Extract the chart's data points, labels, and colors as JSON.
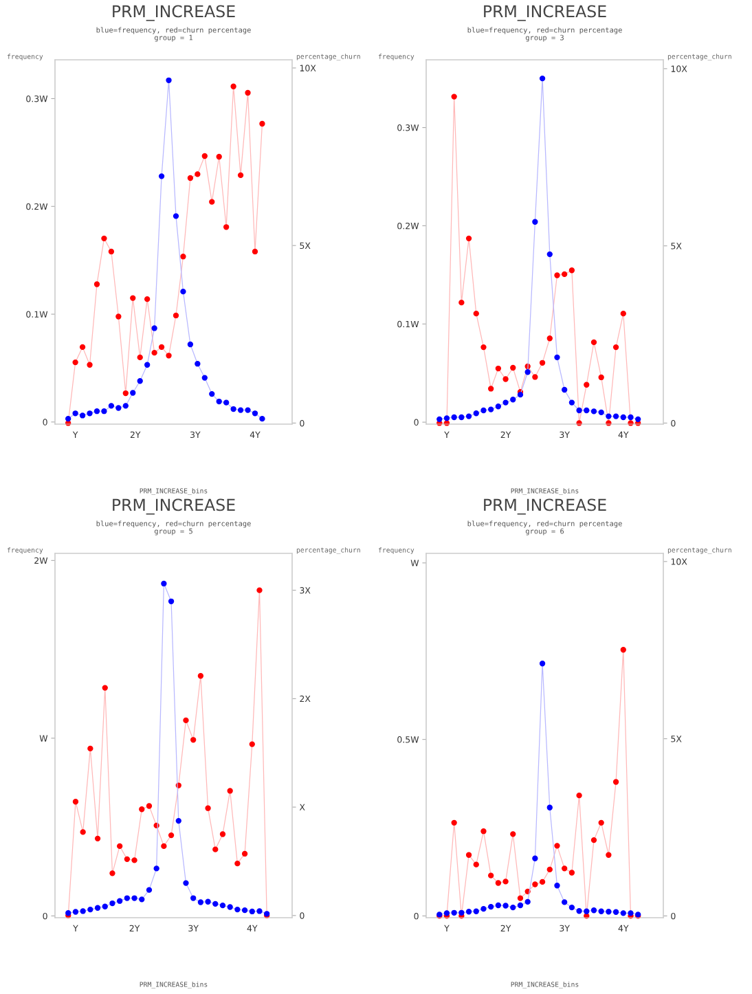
{
  "chart_data": [
    {
      "type": "line",
      "title": "PRM_INCREASE",
      "subtitle": "blue=frequency, red=churn percentage\ngroup = 1",
      "xlabel": "PRM_INCREASE_bins",
      "ylabel": "frequency",
      "y2label": "percentage_churn",
      "marker": "circle",
      "grid": false,
      "x": [
        0.88,
        1.0,
        1.12,
        1.24,
        1.36,
        1.48,
        1.6,
        1.72,
        1.84,
        1.96,
        2.08,
        2.2,
        2.32,
        2.44,
        2.56,
        2.68,
        2.8,
        2.92,
        3.04,
        3.16,
        3.28,
        3.4,
        3.52,
        3.64,
        3.76,
        3.88,
        4.0,
        4.12
      ],
      "xlim": [
        0.66,
        4.62
      ],
      "xticks": [
        {
          "value": 1,
          "label": "Y"
        },
        {
          "value": 2,
          "label": "2Y"
        },
        {
          "value": 3,
          "label": "3Y"
        },
        {
          "value": 4,
          "label": "4Y"
        }
      ],
      "ylim": [
        -0.002,
        0.336
      ],
      "yticks": [
        0,
        {
          "value": 0.1,
          "label": "0.1W"
        },
        {
          "value": 0.2,
          "label": "0.2W"
        },
        {
          "value": 0.3,
          "label": "0.3W"
        }
      ],
      "y2lim": [
        -0.03,
        10.23
      ],
      "y2ticks": [
        0,
        {
          "value": 5,
          "label": "5X"
        },
        {
          "value": 10,
          "label": "10X"
        }
      ],
      "series": [
        {
          "color": "#0000ff",
          "values": [
            0.003,
            0.008,
            0.006,
            0.008,
            0.01,
            0.01,
            0.015,
            0.013,
            0.015,
            0.027,
            0.038,
            0.053,
            0.087,
            0.228,
            0.317,
            0.191,
            0.121,
            0.072,
            0.054,
            0.041,
            0.026,
            0.019,
            0.018,
            0.012,
            0.011,
            0.011,
            0.008,
            0.003
          ]
        },
        {
          "color": "#ff0000",
          "axis": "y2",
          "values": [
            0.0,
            1.71,
            2.14,
            1.64,
            3.91,
            5.2,
            4.83,
            3.0,
            0.84,
            3.52,
            1.85,
            3.49,
            1.98,
            2.14,
            1.9,
            3.03,
            4.69,
            6.9,
            7.01,
            7.52,
            6.23,
            7.5,
            5.52,
            9.48,
            6.98,
            9.3,
            4.83,
            8.43
          ]
        }
      ]
    },
    {
      "type": "line",
      "title": "PRM_INCREASE",
      "subtitle": "blue=frequency, red=churn percentage\ngroup = 3",
      "xlabel": "PRM_INCREASE_bins",
      "ylabel": "frequency",
      "y2label": "percentage_churn",
      "marker": "circle",
      "grid": false,
      "x": [
        0.875,
        1.0,
        1.125,
        1.25,
        1.375,
        1.5,
        1.625,
        1.75,
        1.875,
        2.0,
        2.125,
        2.25,
        2.375,
        2.5,
        2.625,
        2.75,
        2.875,
        3.0,
        3.125,
        3.25,
        3.375,
        3.5,
        3.625,
        3.75,
        3.875,
        4.0,
        4.125,
        4.25
      ],
      "xlim": [
        0.65,
        4.68
      ],
      "xticks": [
        {
          "value": 1,
          "label": "Y"
        },
        {
          "value": 2,
          "label": "2Y"
        },
        {
          "value": 3,
          "label": "3Y"
        },
        {
          "value": 4,
          "label": "4Y"
        }
      ],
      "ylim": [
        -0.002,
        0.369
      ],
      "yticks": [
        0,
        {
          "value": 0.1,
          "label": "0.1W"
        },
        {
          "value": 0.2,
          "label": "0.2W"
        },
        {
          "value": 0.3,
          "label": "0.3W"
        }
      ],
      "y2lim": [
        -0.03,
        10.25
      ],
      "y2ticks": [
        0,
        {
          "value": 5,
          "label": "5X"
        },
        {
          "value": 10,
          "label": "10X"
        }
      ],
      "series": [
        {
          "color": "#0000ff",
          "values": [
            0.003,
            0.004,
            0.005,
            0.005,
            0.006,
            0.009,
            0.012,
            0.013,
            0.016,
            0.02,
            0.023,
            0.028,
            0.051,
            0.204,
            0.35,
            0.171,
            0.066,
            0.033,
            0.02,
            0.012,
            0.012,
            0.011,
            0.01,
            0.006,
            0.006,
            0.005,
            0.005,
            0.003
          ]
        },
        {
          "color": "#ff0000",
          "axis": "y2",
          "values": [
            0.0,
            0.0,
            9.21,
            3.4,
            5.21,
            3.09,
            2.14,
            0.97,
            1.54,
            1.24,
            1.56,
            0.88,
            1.6,
            1.3,
            1.7,
            2.39,
            4.17,
            4.2,
            4.31,
            0.0,
            1.08,
            2.28,
            1.29,
            0.0,
            2.14,
            3.09,
            0.0,
            0.0
          ]
        }
      ]
    },
    {
      "type": "line",
      "title": "PRM_INCREASE",
      "subtitle": "blue=frequency, red=churn percentage\ngroup = 5",
      "xlabel": "PRM_INCREASE_bins",
      "ylabel": "frequency",
      "y2label": "percentage_churn",
      "marker": "circle",
      "grid": false,
      "x": [
        0.875,
        1.0,
        1.125,
        1.25,
        1.375,
        1.5,
        1.625,
        1.75,
        1.875,
        2.0,
        2.125,
        2.25,
        2.375,
        2.5,
        2.625,
        2.75,
        2.875,
        3.0,
        3.125,
        3.25,
        3.375,
        3.5,
        3.625,
        3.75,
        3.875,
        4.0,
        4.125,
        4.25
      ],
      "xlim": [
        0.65,
        4.68
      ],
      "xticks": [
        {
          "value": 1,
          "label": "Y"
        },
        {
          "value": 2,
          "label": "2Y"
        },
        {
          "value": 3,
          "label": "3Y"
        },
        {
          "value": 4,
          "label": "4Y"
        }
      ],
      "ylim": [
        -0.01,
        2.04
      ],
      "yticks": [
        0,
        {
          "value": 1,
          "label": "W"
        },
        {
          "value": 2,
          "label": "2W"
        }
      ],
      "y2lim": [
        -0.02,
        3.34
      ],
      "y2ticks": [
        0,
        {
          "value": 1,
          "label": "X"
        },
        {
          "value": 2,
          "label": "2X"
        },
        {
          "value": 3,
          "label": "3X"
        }
      ],
      "series": [
        {
          "color": "#0000ff",
          "values": [
            0.016,
            0.023,
            0.027,
            0.036,
            0.045,
            0.053,
            0.071,
            0.084,
            0.1,
            0.1,
            0.093,
            0.146,
            0.267,
            1.87,
            1.77,
            0.535,
            0.185,
            0.1,
            0.077,
            0.08,
            0.068,
            0.059,
            0.05,
            0.036,
            0.032,
            0.025,
            0.027,
            0.012
          ]
        },
        {
          "color": "#ff0000",
          "axis": "y2",
          "values": [
            0.0,
            1.05,
            0.77,
            1.54,
            0.71,
            2.1,
            0.39,
            0.64,
            0.52,
            0.51,
            0.98,
            1.01,
            0.83,
            0.64,
            0.74,
            1.2,
            1.8,
            1.62,
            2.21,
            0.99,
            0.61,
            0.75,
            1.15,
            0.48,
            0.57,
            1.58,
            3.0,
            0.0
          ]
        }
      ]
    },
    {
      "type": "line",
      "title": "PRM_INCREASE",
      "subtitle": "blue=frequency, red=churn percentage\ngroup = 6",
      "xlabel": "PRM_INCREASE_bins",
      "ylabel": "frequency",
      "y2label": "percentage_churn",
      "marker": "circle",
      "grid": false,
      "x": [
        0.875,
        1.0,
        1.125,
        1.25,
        1.375,
        1.5,
        1.625,
        1.75,
        1.875,
        2.0,
        2.125,
        2.25,
        2.375,
        2.5,
        2.625,
        2.75,
        2.875,
        3.0,
        3.125,
        3.25,
        3.375,
        3.5,
        3.625,
        3.75,
        3.875,
        4.0,
        4.125,
        4.25
      ],
      "xlim": [
        0.65,
        4.68
      ],
      "xticks": [
        {
          "value": 1,
          "label": "Y"
        },
        {
          "value": 2,
          "label": "2Y"
        },
        {
          "value": 3,
          "label": "3Y"
        },
        {
          "value": 4,
          "label": "4Y"
        }
      ],
      "ylim": [
        -0.005,
        1.027
      ],
      "yticks": [
        0,
        {
          "value": 0.5,
          "label": "0.5W"
        },
        {
          "value": 1,
          "label": "W"
        }
      ],
      "y2lim": [
        -0.05,
        10.23
      ],
      "y2ticks": [
        0,
        {
          "value": 5,
          "label": "5X"
        },
        {
          "value": 10,
          "label": "10X"
        }
      ],
      "series": [
        {
          "color": "#0000ff",
          "values": [
            0.004,
            0.008,
            0.009,
            0.009,
            0.012,
            0.013,
            0.02,
            0.026,
            0.03,
            0.029,
            0.024,
            0.03,
            0.04,
            0.163,
            0.715,
            0.307,
            0.086,
            0.039,
            0.024,
            0.014,
            0.013,
            0.016,
            0.013,
            0.012,
            0.011,
            0.008,
            0.008,
            0.004
          ]
        },
        {
          "color": "#ff0000",
          "axis": "y2",
          "values": [
            0.0,
            0.0,
            2.63,
            0.0,
            1.72,
            1.45,
            2.39,
            1.14,
            0.93,
            0.97,
            2.31,
            0.5,
            0.69,
            0.89,
            0.96,
            1.31,
            1.98,
            1.34,
            1.22,
            3.4,
            0.0,
            2.14,
            2.63,
            1.72,
            3.78,
            7.51,
            0.0,
            0.0
          ]
        }
      ]
    }
  ]
}
